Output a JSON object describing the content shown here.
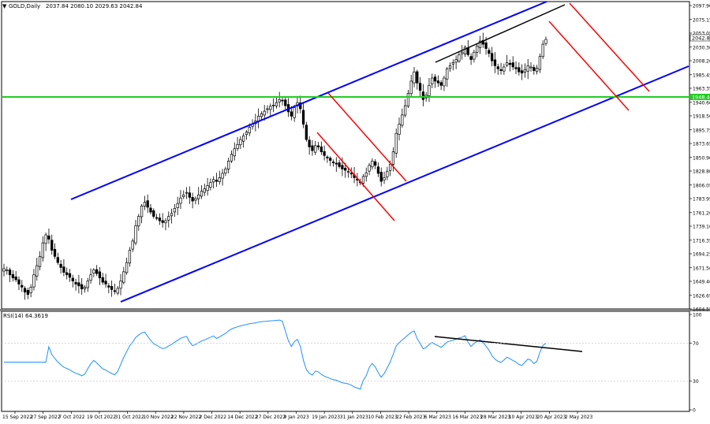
{
  "chart_data": {
    "type": "candlestick",
    "header": {
      "symbol": "GOLD,Daily",
      "ohlc": "2037.84 2080.10 2029.63 2042.84"
    },
    "indicator": {
      "label": "RSI(14) 64.3619",
      "y_ticks": [
        100,
        70,
        30,
        0
      ],
      "ylim": [
        0,
        100
      ],
      "levels": [
        70,
        30
      ]
    },
    "price_ticks": [
      "2097.90",
      "2075.15",
      "2053.05",
      "2030.30",
      "2008.20",
      "1985.45",
      "1963.35",
      "1940.60",
      "1918.50",
      "1895.75",
      "1873.65",
      "1850.90",
      "1828.80",
      "1806.05",
      "1783.95",
      "1761.20",
      "1739.10",
      "1716.35",
      "1694.25",
      "1671.50",
      "1649.40",
      "1626.65",
      "1604.55"
    ],
    "price_range": [
      1604.55,
      2097.9
    ],
    "current_price_label": "2042.84",
    "support_label": "1948.48",
    "date_ticks": [
      "15 Sep 2022",
      "27 Sep 2022",
      "7 Oct 2022",
      "19 Oct 2022",
      "31 Oct 2022",
      "10 Nov 2022",
      "22 Nov 2022",
      "2 Dec 2022",
      "14 Dec 2022",
      "27 Dec 2022",
      "9 Jan 2023",
      "19 Jan 2023",
      "31 Jan 2023",
      "10 Feb 2023",
      "22 Feb 2023",
      "6 Mar 2023",
      "16 Mar 2023",
      "28 Mar 2023",
      "10 Apr 2023",
      "20 Apr 2023",
      "2 May 2023"
    ],
    "closes": [
      1670,
      1668,
      1660,
      1655,
      1652,
      1645,
      1640,
      1632,
      1628,
      1640,
      1660,
      1675,
      1690,
      1712,
      1725,
      1718,
      1700,
      1690,
      1680,
      1672,
      1664,
      1660,
      1656,
      1650,
      1645,
      1642,
      1637,
      1640,
      1650,
      1660,
      1668,
      1662,
      1655,
      1648,
      1645,
      1640,
      1636,
      1633,
      1638,
      1650,
      1665,
      1680,
      1700,
      1715,
      1740,
      1755,
      1772,
      1778,
      1770,
      1762,
      1755,
      1752,
      1748,
      1745,
      1748,
      1755,
      1760,
      1768,
      1776,
      1785,
      1790,
      1794,
      1786,
      1780,
      1784,
      1790,
      1796,
      1800,
      1805,
      1810,
      1815,
      1812,
      1818,
      1825,
      1832,
      1845,
      1856,
      1865,
      1872,
      1880,
      1886,
      1892,
      1900,
      1905,
      1910,
      1918,
      1922,
      1926,
      1930,
      1934,
      1936,
      1940,
      1945,
      1944,
      1935,
      1925,
      1918,
      1932,
      1940,
      1930,
      1905,
      1880,
      1868,
      1862,
      1870,
      1868,
      1860,
      1854,
      1850,
      1846,
      1842,
      1840,
      1836,
      1832,
      1830,
      1828,
      1824,
      1818,
      1814,
      1810,
      1820,
      1826,
      1838,
      1845,
      1838,
      1825,
      1812,
      1818,
      1828,
      1840,
      1860,
      1890,
      1905,
      1920,
      1935,
      1955,
      1975,
      1990,
      1972,
      1960,
      1945,
      1952,
      1968,
      1980,
      1975,
      1972,
      1968,
      1980,
      1995,
      2000,
      2005,
      2010,
      2018,
      2022,
      2030,
      2018,
      2010,
      2022,
      2032,
      2040,
      2035,
      2028,
      2020,
      2008,
      2000,
      1995,
      1992,
      1998,
      2005,
      2002,
      1998,
      1995,
      1990,
      1988,
      1994,
      2000,
      1998,
      1992,
      1996,
      2015,
      2035,
      2042.84
    ]
  }
}
